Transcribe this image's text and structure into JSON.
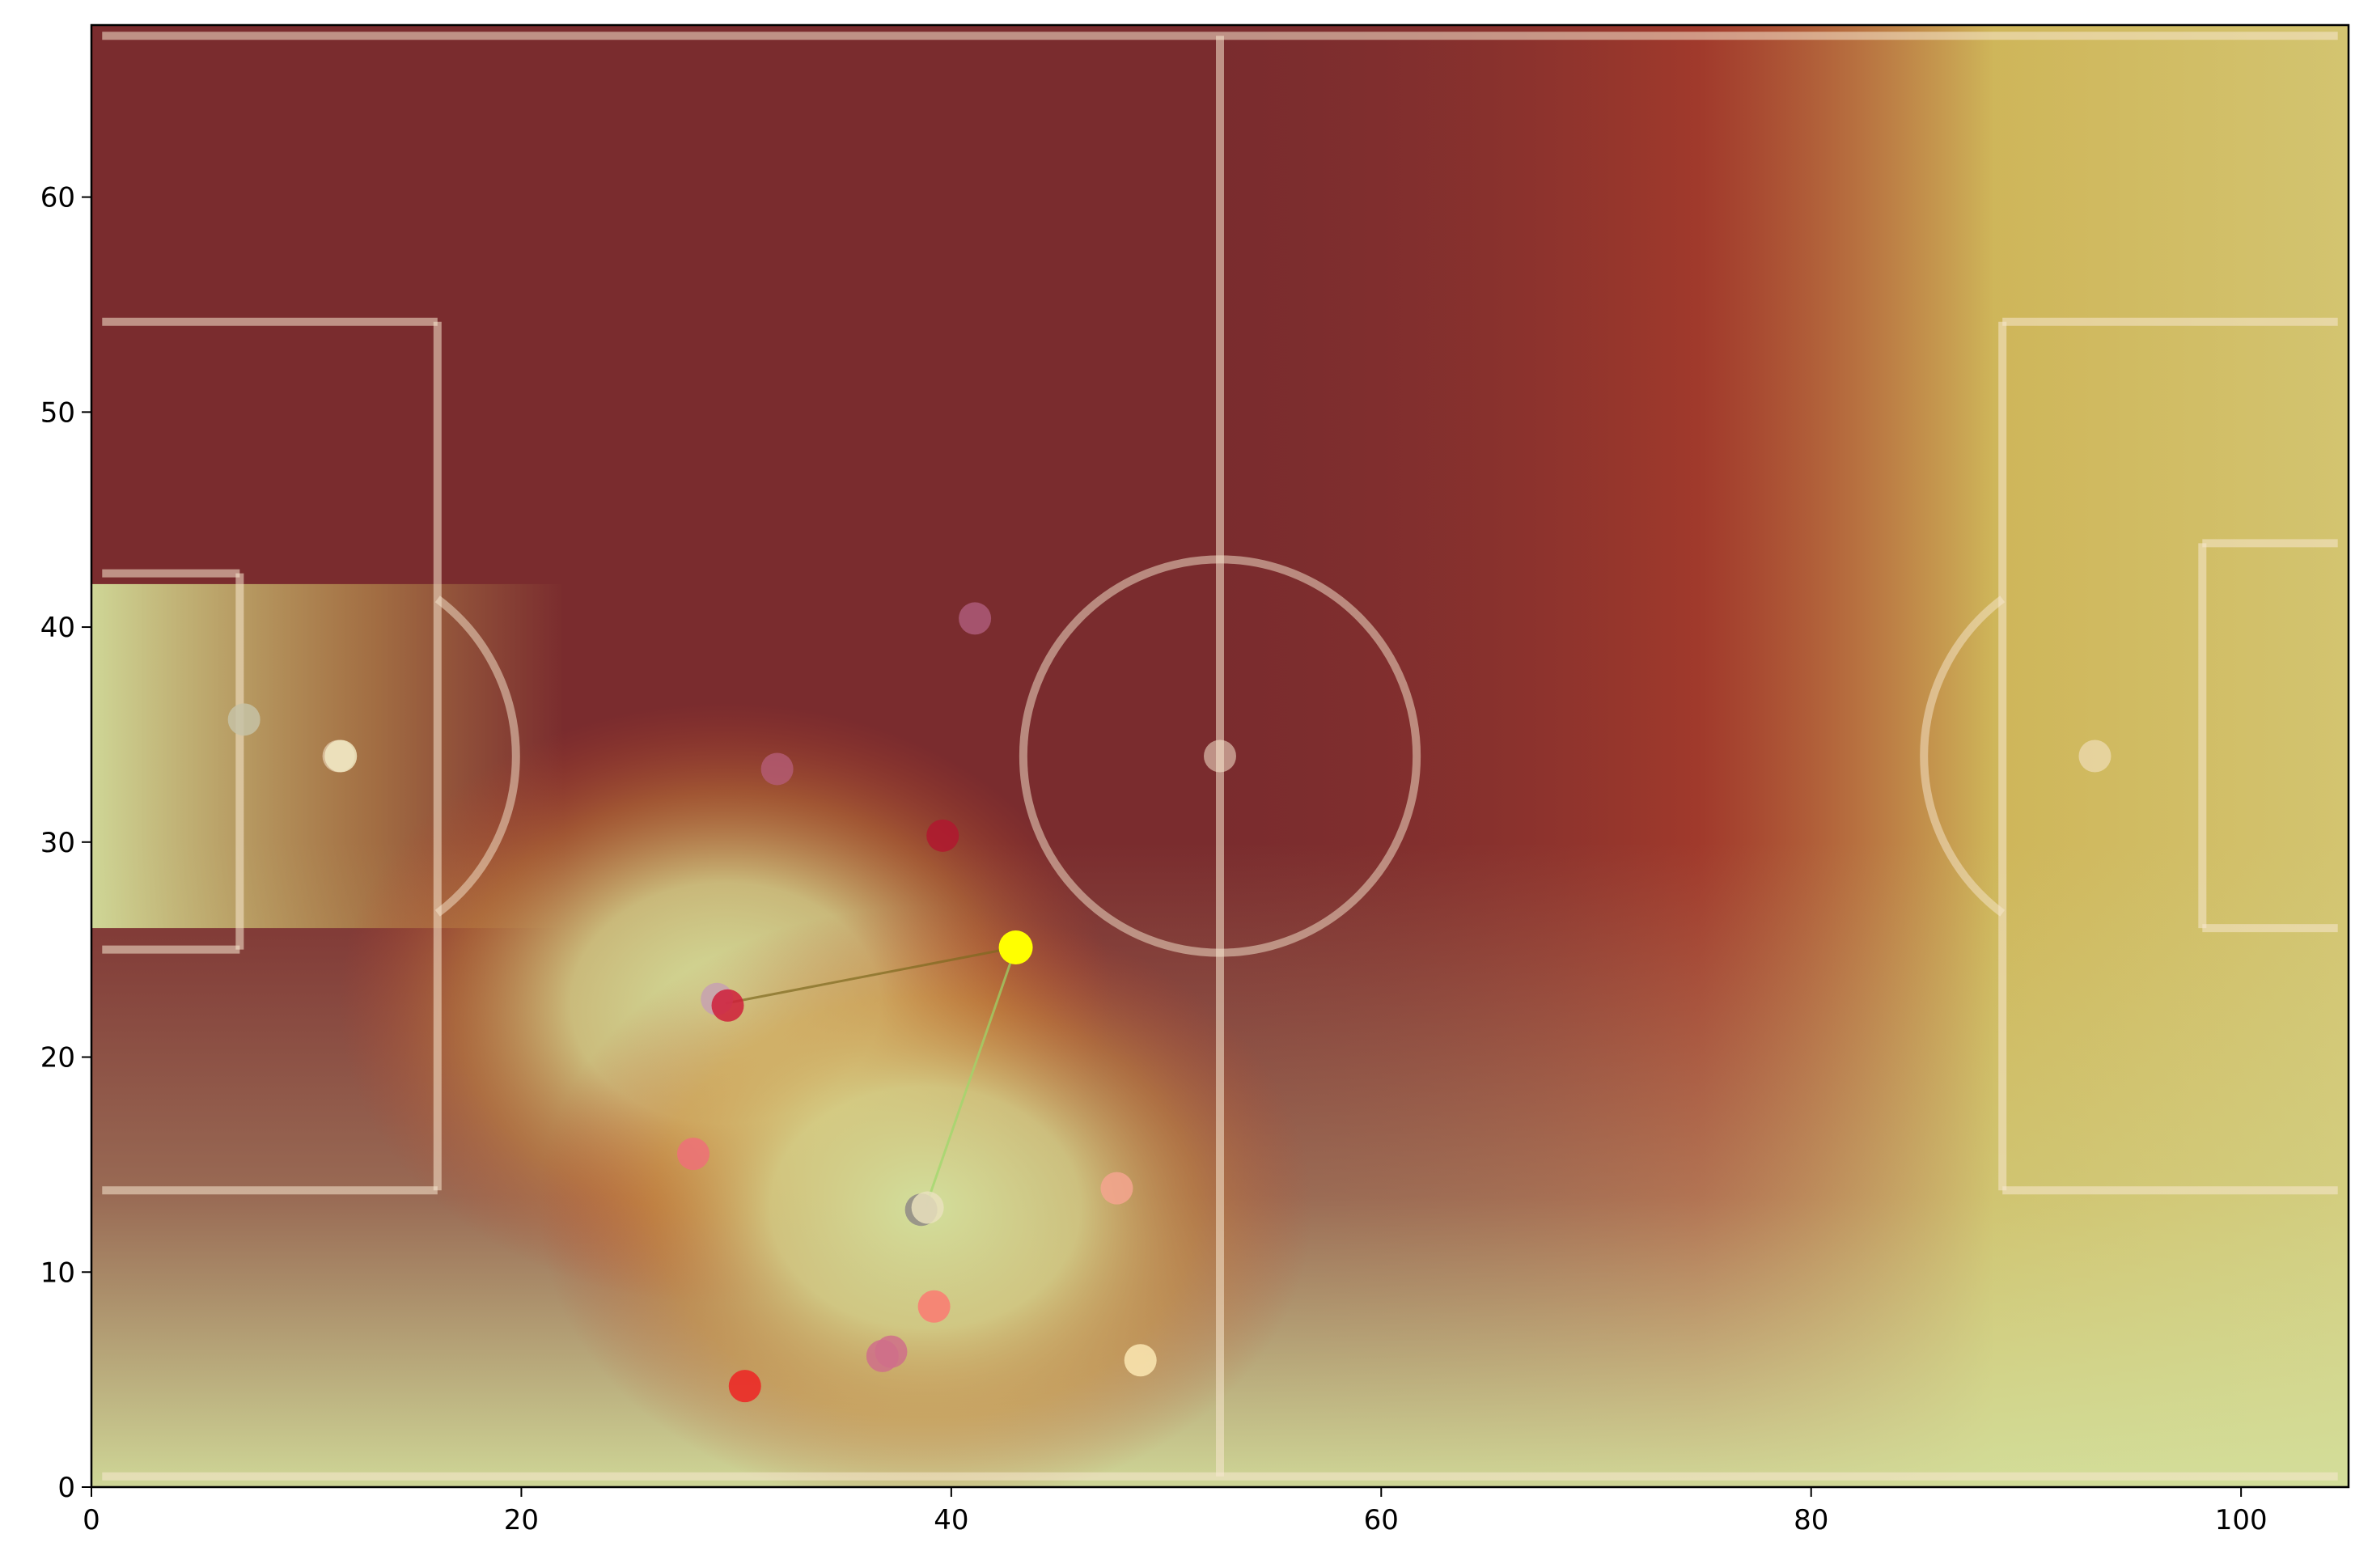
{
  "chart_data": {
    "type": "scatter",
    "title": "",
    "xlabel": "",
    "ylabel": "",
    "xlim": [
      0,
      105
    ],
    "ylim": [
      0,
      68
    ],
    "grid": false,
    "x_ticks": [
      0,
      20,
      40,
      60,
      80,
      100
    ],
    "y_ticks": [
      0,
      10,
      20,
      30,
      40,
      50,
      60
    ],
    "x_tick_labels": [
      "0",
      "20",
      "40",
      "60",
      "80",
      "100"
    ],
    "y_tick_labels": [
      "0",
      "10",
      "20",
      "30",
      "40",
      "50",
      "60"
    ],
    "pitch": {
      "length": 105,
      "width": 68,
      "center_circle_radius": 9.15,
      "penalty_box": {
        "depth": 16.5,
        "width": 40.3
      },
      "goal_area": {
        "depth": 5.5,
        "width": 18.3
      },
      "penalty_spot_distance": 11,
      "lines": [
        {
          "name": "touchline-bottom",
          "x1": 0.5,
          "y1": 0.5,
          "x2": 104.5,
          "y2": 0.5
        },
        {
          "name": "touchline-top",
          "x1": 0.5,
          "y1": 67.5,
          "x2": 104.5,
          "y2": 67.5
        },
        {
          "name": "halfway-line",
          "x1": 52.5,
          "y1": 0.5,
          "x2": 52.5,
          "y2": 67.5
        },
        {
          "name": "left-penalty-box-top",
          "x1": 0.5,
          "y1": 54.2,
          "x2": 16.1,
          "y2": 54.2
        },
        {
          "name": "left-penalty-box-side",
          "x1": 16.1,
          "y1": 54.2,
          "x2": 16.1,
          "y2": 13.8
        },
        {
          "name": "left-penalty-box-bottom",
          "x1": 16.1,
          "y1": 13.8,
          "x2": 0.5,
          "y2": 13.8
        },
        {
          "name": "left-goal-area-top",
          "x1": 0.5,
          "y1": 42.5,
          "x2": 6.9,
          "y2": 42.5
        },
        {
          "name": "left-goal-area-side",
          "x1": 6.9,
          "y1": 42.5,
          "x2": 6.9,
          "y2": 25.0
        },
        {
          "name": "left-goal-area-bottom",
          "x1": 6.9,
          "y1": 25.0,
          "x2": 0.5,
          "y2": 25.0
        },
        {
          "name": "right-penalty-box-top",
          "x1": 104.5,
          "y1": 54.2,
          "x2": 88.9,
          "y2": 54.2
        },
        {
          "name": "right-penalty-box-side",
          "x1": 88.9,
          "y1": 54.2,
          "x2": 88.9,
          "y2": 13.8
        },
        {
          "name": "right-penalty-box-bottom",
          "x1": 88.9,
          "y1": 13.8,
          "x2": 104.5,
          "y2": 13.8
        },
        {
          "name": "right-goal-area-top",
          "x1": 104.5,
          "y1": 43.9,
          "x2": 98.2,
          "y2": 43.9
        },
        {
          "name": "right-goal-area-side",
          "x1": 98.2,
          "y1": 43.9,
          "x2": 98.2,
          "y2": 26.0
        },
        {
          "name": "right-goal-area-bottom",
          "x1": 98.2,
          "y1": 26.0,
          "x2": 104.5,
          "y2": 26.0
        }
      ],
      "spots": [
        {
          "name": "left-penalty-spot",
          "x": 11.5,
          "y": 34
        },
        {
          "name": "centre-spot",
          "x": 52.5,
          "y": 34
        },
        {
          "name": "right-penalty-spot",
          "x": 93.2,
          "y": 34
        }
      ]
    },
    "heatmap": {
      "colorscale": [
        "#7a2c2e",
        "#a12d2d",
        "#c0452a",
        "#d0893a",
        "#d3bd5c",
        "#d3df9c"
      ],
      "hotspots": [
        {
          "x": 29.5,
          "y": 22.5
        },
        {
          "x": 38.8,
          "y": 13.0
        }
      ]
    },
    "ball": {
      "x": 43.0,
      "y": 25.1,
      "color": "#ffff00"
    },
    "pass_lines": [
      {
        "x1": 43.0,
        "y1": 25.1,
        "x2": 29.5,
        "y2": 22.5,
        "color": "#7d6a1f"
      },
      {
        "x1": 43.0,
        "y1": 25.1,
        "x2": 38.8,
        "y2": 13.0,
        "color": "#9bd86a"
      }
    ],
    "players": [
      {
        "x": 7.1,
        "y": 35.7,
        "color": "#c6c2a6"
      },
      {
        "x": 11.6,
        "y": 34.0,
        "color": "#f0e8c2"
      },
      {
        "x": 31.9,
        "y": 33.4,
        "color": "#b35a72"
      },
      {
        "x": 39.6,
        "y": 30.3,
        "color": "#b0172f"
      },
      {
        "x": 41.1,
        "y": 40.4,
        "color": "#ad5a78"
      },
      {
        "x": 29.1,
        "y": 22.7,
        "color": "#c7a1b1"
      },
      {
        "x": 29.6,
        "y": 22.4,
        "color": "#cf1f3a"
      },
      {
        "x": 28.0,
        "y": 15.5,
        "color": "#ef7078"
      },
      {
        "x": 38.6,
        "y": 12.9,
        "color": "#8f8a86"
      },
      {
        "x": 38.9,
        "y": 13.0,
        "color": "#e9e1bd"
      },
      {
        "x": 39.2,
        "y": 8.4,
        "color": "#fb7a72"
      },
      {
        "x": 37.2,
        "y": 6.3,
        "color": "#cf6f89"
      },
      {
        "x": 36.8,
        "y": 6.1,
        "color": "#cf6f89"
      },
      {
        "x": 30.4,
        "y": 4.7,
        "color": "#ef2323"
      },
      {
        "x": 47.7,
        "y": 13.9,
        "color": "#f5a58f"
      },
      {
        "x": 48.8,
        "y": 5.9,
        "color": "#fbe7b3"
      }
    ]
  },
  "colors": {
    "line_color": "#f8e8d0",
    "frame_color": "#000000"
  }
}
